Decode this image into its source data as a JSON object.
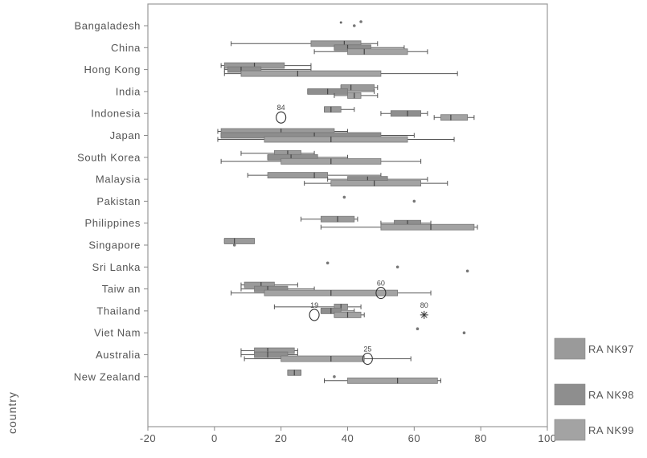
{
  "chart_data": {
    "type": "boxplot",
    "orientation": "horizontal",
    "ylabel": "country",
    "xlabel": "",
    "xlim": [
      -20,
      100
    ],
    "x_ticks": [
      -20,
      0,
      20,
      40,
      60,
      80,
      100
    ],
    "grid": false,
    "legend_position": "right",
    "categories": [
      "Bangaladesh",
      "China",
      "Hong Kong",
      "India",
      "Indonesia",
      "Japan",
      "South Korea",
      "Malaysia",
      "Pakistan",
      "Philippines",
      "Singapore",
      "Sri Lanka",
      "Taiw an",
      "Thailand",
      "Viet Nam",
      "Australia",
      "New Zealand"
    ],
    "series": [
      {
        "name": "RA NK97",
        "color": "#9a9a9a",
        "boxes": [
          {
            "category": "Bangaladesh",
            "point": 44
          },
          {
            "category": "China",
            "whisker_low": 5,
            "q1": 29,
            "median": 39,
            "q3": 44,
            "whisker_high": 49
          },
          {
            "category": "Hong Kong",
            "whisker_low": 2,
            "q1": 3,
            "median": 12,
            "q3": 21,
            "whisker_high": 29
          },
          {
            "category": "India",
            "q1": 38,
            "median": 41,
            "q3": 48,
            "whisker_high": 49
          },
          {
            "category": "Indonesia",
            "q1": 33,
            "median": 35,
            "q3": 38,
            "whisker_high": 42
          },
          {
            "category": "Japan",
            "whisker_low": 1,
            "q1": 2,
            "median": 20,
            "q3": 36,
            "whisker_high": 40
          },
          {
            "category": "South Korea",
            "whisker_low": 8,
            "q1": 18,
            "median": 22,
            "q3": 26,
            "whisker_high": 30
          },
          {
            "category": "Malaysia",
            "whisker_low": 10,
            "q1": 16,
            "median": 30,
            "q3": 34,
            "whisker_high": 50
          },
          {
            "category": "Pakistan",
            "point": 39
          },
          {
            "category": "Philippines",
            "whisker_low": 26,
            "q1": 32,
            "median": 37,
            "q3": 42,
            "whisker_high": 43
          },
          {
            "category": "Singapore",
            "q1": 3,
            "median": 6,
            "q3": 12,
            "whisker_high": 12
          },
          {
            "category": "Sri Lanka",
            "point": 34
          },
          {
            "category": "Taiw an",
            "whisker_low": 8,
            "q1": 9,
            "median": 14,
            "q3": 18,
            "whisker_high": 25
          },
          {
            "category": "Thailand",
            "whisker_low": 18,
            "q1": 36,
            "median": 38,
            "q3": 40,
            "whisker_high": 44
          },
          {
            "category": "Viet Nam",
            "point": 61
          },
          {
            "category": "Australia",
            "whisker_low": 8,
            "q1": 12,
            "median": 16,
            "q3": 24,
            "whisker_high": 25
          },
          {
            "category": "New Zealand",
            "q1": 22,
            "median": 24,
            "q3": 26,
            "whisker_high": 26
          }
        ]
      },
      {
        "name": "RA NK98",
        "color": "#8e8e8e",
        "boxes": [
          {
            "category": "Bangaladesh",
            "point": 42
          },
          {
            "category": "China",
            "q1": 36,
            "median": 40,
            "q3": 47,
            "whisker_high": 57
          },
          {
            "category": "Hong Kong",
            "whisker_low": 3,
            "q1": 4,
            "median": 8,
            "q3": 14,
            "whisker_high": 29
          },
          {
            "category": "India",
            "q1": 28,
            "median": 34,
            "q3": 40,
            "whisker_high": 48
          },
          {
            "category": "Indonesia",
            "whisker_low": 50,
            "q1": 53,
            "median": 58,
            "q3": 62,
            "whisker_high": 64
          },
          {
            "category": "Japan",
            "q1": 2,
            "median": 30,
            "q3": 50,
            "whisker_high": 60
          },
          {
            "category": "South Korea",
            "q1": 16,
            "median": 23,
            "q3": 31,
            "whisker_high": 40
          },
          {
            "category": "Malaysia",
            "whisker_low": 34,
            "q1": 40,
            "median": 46,
            "q3": 52,
            "whisker_high": 64
          },
          {
            "category": "Pakistan",
            "point": 60
          },
          {
            "category": "Philippines",
            "whisker_low": 50,
            "q1": 54,
            "median": 58,
            "q3": 62,
            "whisker_high": 65
          },
          {
            "category": "Singapore",
            "point": 6
          },
          {
            "category": "Sri Lanka",
            "point": 55
          },
          {
            "category": "Taiw an",
            "whisker_low": 8,
            "q1": 12,
            "median": 16,
            "q3": 22,
            "whisker_high": 30
          },
          {
            "category": "Thailand",
            "q1": 32,
            "median": 35,
            "q3": 38,
            "whisker_high": 42
          },
          {
            "category": "Viet Nam",
            "point": 75
          },
          {
            "category": "Australia",
            "whisker_low": 8,
            "q1": 12,
            "median": 16,
            "q3": 22,
            "whisker_high": 25
          },
          {
            "category": "New Zealand",
            "point": 36
          }
        ]
      },
      {
        "name": "RA NK99",
        "color": "#a3a3a3",
        "boxes": [
          {
            "category": "China",
            "whisker_low": 30,
            "q1": 40,
            "median": 45,
            "q3": 58,
            "whisker_high": 64
          },
          {
            "category": "Hong Kong",
            "whisker_low": 3,
            "q1": 8,
            "median": 25,
            "q3": 50,
            "whisker_high": 73
          },
          {
            "category": "India",
            "whisker_low": 36,
            "q1": 40,
            "median": 42,
            "q3": 44,
            "whisker_high": 49
          },
          {
            "category": "Indonesia",
            "whisker_low": 66,
            "q1": 68,
            "median": 71,
            "q3": 76,
            "whisker_high": 78
          },
          {
            "category": "Japan",
            "whisker_low": 1,
            "q1": 15,
            "median": 35,
            "q3": 58,
            "whisker_high": 72
          },
          {
            "category": "South Korea",
            "whisker_low": 2,
            "q1": 20,
            "median": 35,
            "q3": 50,
            "whisker_high": 62
          },
          {
            "category": "Malaysia",
            "whisker_low": 27,
            "q1": 35,
            "median": 48,
            "q3": 62,
            "whisker_high": 70
          },
          {
            "category": "Philippines",
            "whisker_low": 32,
            "q1": 50,
            "median": 65,
            "q3": 78,
            "whisker_high": 79
          },
          {
            "category": "Sri Lanka",
            "point": 76
          },
          {
            "category": "Taiw an",
            "whisker_low": 5,
            "q1": 15,
            "median": 35,
            "q3": 55,
            "whisker_high": 65
          },
          {
            "category": "Thailand",
            "q1": 36,
            "median": 40,
            "q3": 44,
            "whisker_high": 45
          },
          {
            "category": "Australia",
            "whisker_low": 9,
            "q1": 20,
            "median": 35,
            "q3": 45,
            "whisker_high": 59
          },
          {
            "category": "New Zealand",
            "whisker_low": 33,
            "q1": 40,
            "median": 55,
            "q3": 67,
            "whisker_high": 68
          }
        ]
      }
    ],
    "outliers": [
      {
        "category": "Bangaladesh",
        "label": "",
        "marker": "dot",
        "x": 38
      },
      {
        "category": "Indonesia",
        "label": "84",
        "marker": "circle",
        "x": 20
      },
      {
        "category": "Taiw an",
        "label": "60",
        "marker": "circle",
        "x": 50
      },
      {
        "category": "Thailand",
        "label": "19",
        "marker": "circle",
        "x": 30
      },
      {
        "category": "Thailand",
        "label": "80",
        "marker": "star",
        "x": 63
      },
      {
        "category": "Australia",
        "label": "25",
        "marker": "circle",
        "x": 46
      }
    ]
  }
}
